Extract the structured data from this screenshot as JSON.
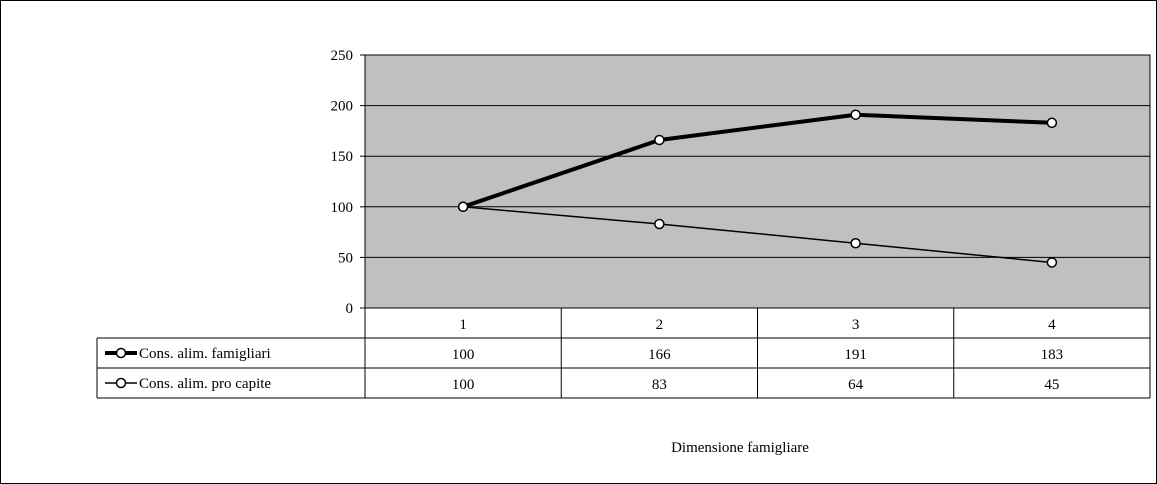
{
  "chart_data": {
    "type": "line",
    "xlabel": "Dimensione famigliare",
    "ylabel": "",
    "categories": [
      "1",
      "2",
      "3",
      "4"
    ],
    "ylim": [
      0,
      250
    ],
    "yticks": [
      0,
      50,
      100,
      150,
      200,
      250
    ],
    "grid": true,
    "plot_background": "#c0c0c0",
    "series": [
      {
        "name": "Cons. alim. famigliari",
        "values": [
          100,
          166,
          191,
          183
        ],
        "style": "thick",
        "color": "#000000"
      },
      {
        "name": "Cons. alim. pro capite",
        "values": [
          100,
          83,
          64,
          45
        ],
        "style": "thin",
        "color": "#000000"
      }
    ],
    "legend": "data-table"
  }
}
